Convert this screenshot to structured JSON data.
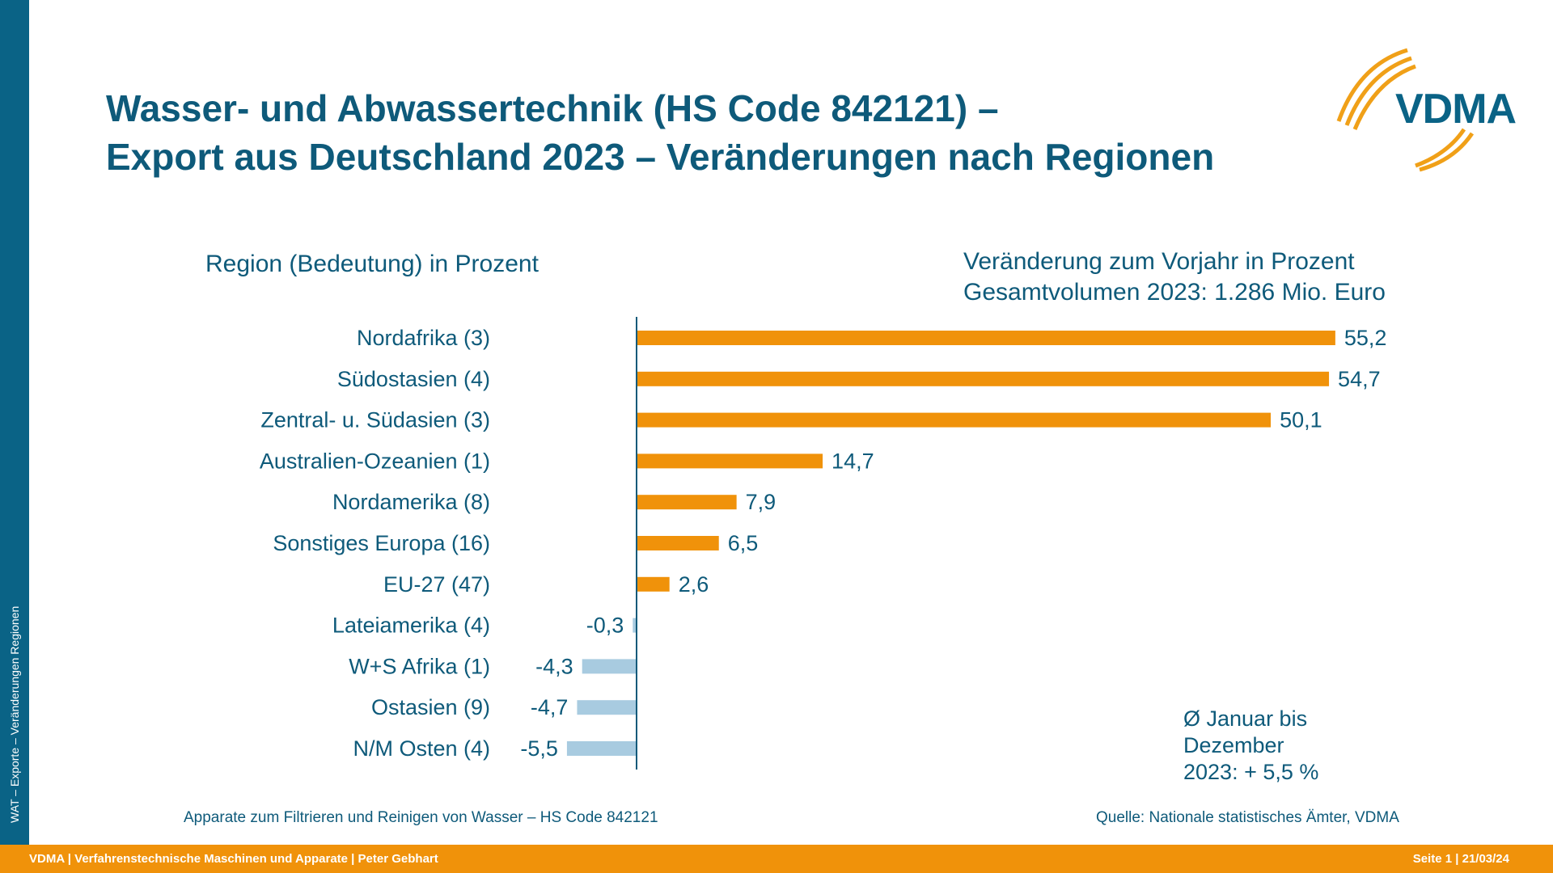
{
  "slide": {
    "title_line1": "Wasser- und Abwassertechnik (HS Code 842121) –",
    "title_line2": "Export aus Deutschland 2023 – Veränderungen nach Regionen",
    "logo_text": "VDMA",
    "side_text": "WAT – Exporte – Veränderungen Regionen",
    "left_heading": "Region (Bedeutung) in Prozent",
    "right_heading_line1": "Veränderung zum Vorjahr in Prozent",
    "right_heading_line2": "Gesamtvolumen 2023: 1.286 Mio. Euro",
    "note_line1": "Ø Januar bis",
    "note_line2": "Dezember",
    "note_line3": "2023: + 5,5 %",
    "footnote": "Apparate zum Filtrieren und Reinigen von Wasser – HS Code 842121",
    "source": "Quelle: Nationale statistisches Ämter, VDMA",
    "footer_left": "VDMA | Verfahrenstechnische Maschinen und Apparate | Peter Gebhart",
    "footer_right": "Seite 1 | 21/03/24"
  },
  "colors": {
    "title": "#0e5a7a",
    "side_bar": "#0a6386",
    "footer_bar": "#f0920a",
    "positive": "#f0920a",
    "negative": "#a8cbe0",
    "axis": "#0e5a7a"
  },
  "chart_data": {
    "type": "bar",
    "orientation": "horizontal",
    "categories": [
      "Nordafrika (3)",
      "Südostasien (4)",
      "Zentral- u. Südasien (3)",
      "Australien-Ozeanien (1)",
      "Nordamerika (8)",
      "Sonstiges Europa (16)",
      "EU-27 (47)",
      "Lateiamerika (4)",
      "W+S Afrika (1)",
      "Ostasien (9)",
      "N/M Osten (4)"
    ],
    "values": [
      55.2,
      54.7,
      50.1,
      14.7,
      7.9,
      6.5,
      2.6,
      -0.3,
      -4.3,
      -4.7,
      -5.5
    ],
    "value_labels": [
      "55,2",
      "54,7",
      "50,1",
      "14,7",
      "7,9",
      "6,5",
      "2,6",
      "-0,3",
      "-4,3",
      "-4,7",
      "-5,5"
    ],
    "xlim": [
      -5.5,
      55.2
    ],
    "grid": false,
    "legend": "none"
  }
}
